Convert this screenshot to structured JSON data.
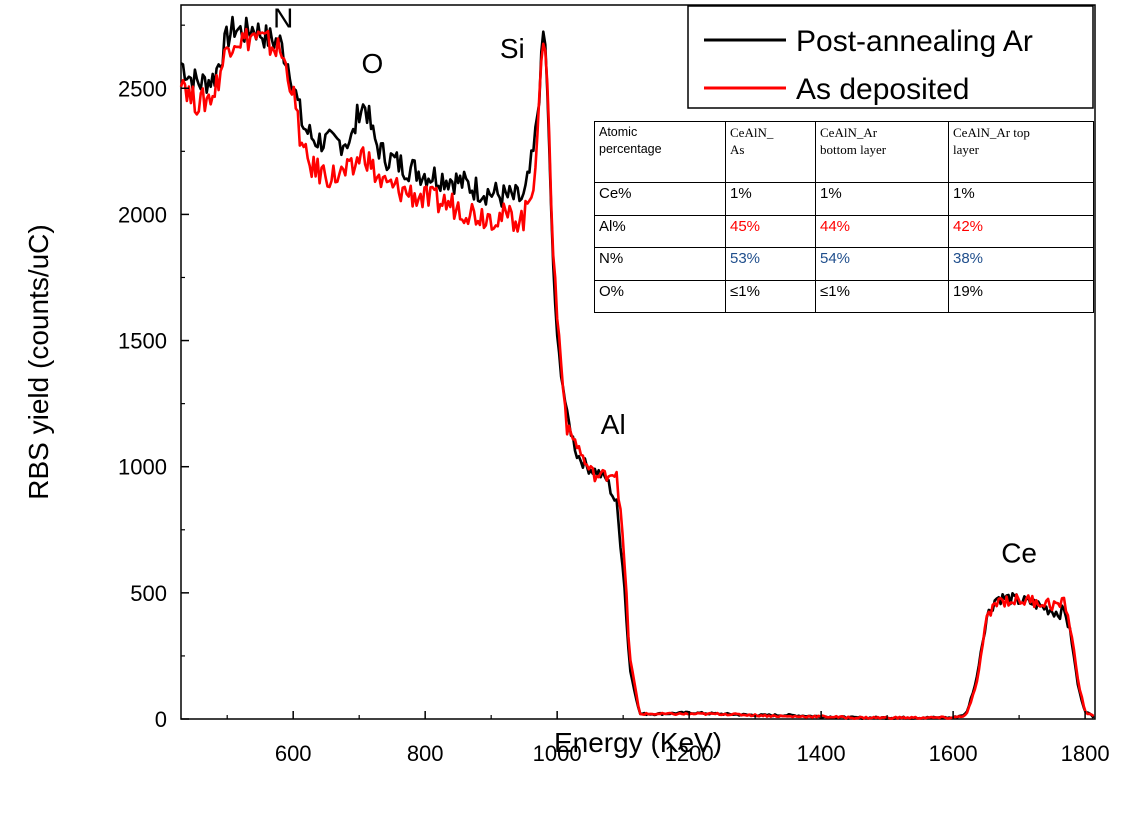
{
  "chart_data": {
    "type": "line",
    "xlabel": "Energy (KeV)",
    "ylabel": "RBS yield (counts/uC)",
    "xlim": [
      430,
      1815
    ],
    "ylim": [
      0,
      2830
    ],
    "x_ticks": [
      600,
      800,
      1000,
      1200,
      1400,
      1600,
      1800
    ],
    "y_ticks": [
      0,
      500,
      1000,
      1500,
      2000,
      2500
    ],
    "legend_position": "top-right",
    "series": [
      {
        "name": "Post-annealing Ar",
        "color": "#000000",
        "x": [
          430,
          445,
          460,
          480,
          500,
          510,
          525,
          540,
          560,
          580,
          595,
          605,
          615,
          630,
          660,
          690,
          700,
          710,
          722,
          735,
          760,
          800,
          840,
          880,
          920,
          950,
          965,
          975,
          980,
          985,
          992,
          1000,
          1015,
          1030,
          1045,
          1060,
          1075,
          1090,
          1100,
          1110,
          1125,
          1150,
          1200,
          1250,
          1300,
          1350,
          1400,
          1450,
          1500,
          1550,
          1600,
          1620,
          1635,
          1650,
          1665,
          1680,
          1700,
          1720,
          1740,
          1760,
          1770,
          1780,
          1790,
          1800,
          1815
        ],
        "values": [
          2600,
          2540,
          2520,
          2540,
          2700,
          2740,
          2720,
          2740,
          2700,
          2680,
          2580,
          2460,
          2350,
          2300,
          2280,
          2300,
          2420,
          2430,
          2300,
          2240,
          2200,
          2160,
          2140,
          2100,
          2070,
          2060,
          2250,
          2550,
          2760,
          2500,
          1900,
          1500,
          1200,
          1050,
          1000,
          980,
          950,
          850,
          600,
          200,
          20,
          20,
          25,
          20,
          15,
          15,
          10,
          5,
          5,
          5,
          5,
          20,
          150,
          400,
          480,
          480,
          470,
          460,
          440,
          420,
          430,
          300,
          120,
          30,
          5
        ]
      },
      {
        "name": "As deposited",
        "color": "#ff0000",
        "x": [
          430,
          445,
          460,
          480,
          500,
          510,
          525,
          540,
          560,
          580,
          595,
          605,
          615,
          630,
          660,
          690,
          700,
          710,
          722,
          735,
          760,
          800,
          840,
          880,
          920,
          950,
          965,
          975,
          980,
          985,
          992,
          1000,
          1015,
          1030,
          1045,
          1060,
          1075,
          1090,
          1100,
          1110,
          1125,
          1150,
          1200,
          1250,
          1300,
          1350,
          1400,
          1450,
          1500,
          1550,
          1600,
          1620,
          1635,
          1650,
          1665,
          1680,
          1700,
          1720,
          1740,
          1760,
          1770,
          1780,
          1790,
          1800,
          1815
        ],
        "values": [
          2560,
          2460,
          2440,
          2480,
          2660,
          2700,
          2690,
          2710,
          2680,
          2650,
          2540,
          2400,
          2240,
          2180,
          2150,
          2170,
          2230,
          2240,
          2170,
          2120,
          2100,
          2060,
          2040,
          2000,
          1990,
          1980,
          2150,
          2500,
          2770,
          2550,
          1950,
          1600,
          1150,
          1090,
          1000,
          960,
          970,
          980,
          700,
          250,
          20,
          20,
          20,
          20,
          15,
          10,
          10,
          5,
          5,
          5,
          5,
          15,
          130,
          380,
          470,
          470,
          470,
          470,
          460,
          450,
          460,
          330,
          140,
          30,
          5
        ]
      }
    ],
    "annotations": [
      {
        "text": "N",
        "x": 585,
        "y": 2740
      },
      {
        "text": "O",
        "x": 720,
        "y": 2560
      },
      {
        "text": "Si",
        "x": 932,
        "y": 2620
      },
      {
        "text": "Al",
        "x": 1085,
        "y": 1130
      },
      {
        "text": "Ce",
        "x": 1700,
        "y": 620
      }
    ]
  },
  "table": {
    "header": {
      "c0_line1": "Atomic",
      "c0_line2": "percentage",
      "c1_line1": "CeAlN_",
      "c1_line2": "As",
      "c2_line1": "CeAlN_Ar",
      "c2_line2": "bottom layer",
      "c3_line1": "CeAlN_Ar top",
      "c3_line2": "layer"
    },
    "rows": [
      {
        "label": "Ce%",
        "v1": "1%",
        "v2": "1%",
        "v3": "1%",
        "color": "#000000"
      },
      {
        "label": "Al%",
        "v1": "45%",
        "v2": "44%",
        "v3": "42%",
        "color": "#ff0000"
      },
      {
        "label": "N%",
        "v1": "53%",
        "v2": "54%",
        "v3": "38%",
        "color": "#1f4e8c"
      },
      {
        "label": "O%",
        "v1": "≤1%",
        "v2": "≤1%",
        "v3": "19%",
        "color": "#000000"
      }
    ]
  }
}
